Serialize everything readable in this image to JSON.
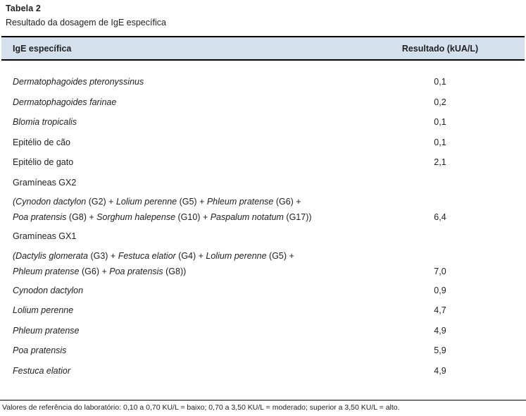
{
  "title": "Tabela 2",
  "subtitle": "Resultado da dosagem de IgE específica",
  "table": {
    "header": {
      "allergen": "IgE específica",
      "result": "Resultado (kUA/L)"
    },
    "rows": [
      {
        "lines": [
          [
            {
              "text": "Dermatophagoides pteronyssinus",
              "italic": true
            }
          ]
        ],
        "value": "0,1"
      },
      {
        "lines": [
          [
            {
              "text": "Dermatophagoides farinae",
              "italic": true
            }
          ]
        ],
        "value": "0,2"
      },
      {
        "lines": [
          [
            {
              "text": "Blomia tropicalis",
              "italic": true
            }
          ]
        ],
        "value": "0,1"
      },
      {
        "lines": [
          [
            {
              "text": "Epitélio de cão",
              "italic": false
            }
          ]
        ],
        "value": "0,1"
      },
      {
        "lines": [
          [
            {
              "text": "Epitélio de gato",
              "italic": false
            }
          ]
        ],
        "value": "2,1"
      },
      {
        "lines": [
          [
            {
              "text": "Gramíneas GX2",
              "italic": false
            }
          ]
        ],
        "value": ""
      },
      {
        "lines": [
          [
            {
              "text": "(Cynodon dactylon",
              "italic": true
            },
            {
              "text": " (G2) + ",
              "italic": false
            },
            {
              "text": "Lolium perenne",
              "italic": true
            },
            {
              "text": " (G5) + ",
              "italic": false
            },
            {
              "text": "Phleum pratense",
              "italic": true
            },
            {
              "text": " (G6) +",
              "italic": false
            }
          ],
          [
            {
              "text": "Poa pratensis",
              "italic": true
            },
            {
              "text": " (G8) + ",
              "italic": false
            },
            {
              "text": "Sorghum halepense",
              "italic": true
            },
            {
              "text": " (G10) + ",
              "italic": false
            },
            {
              "text": "Paspalum notatum",
              "italic": true
            },
            {
              "text": " (G17))",
              "italic": false
            }
          ]
        ],
        "value": "6,4"
      },
      {
        "lines": [
          [
            {
              "text": "Gramíneas GX1",
              "italic": false
            }
          ]
        ],
        "value": ""
      },
      {
        "lines": [
          [
            {
              "text": "(Dactylis glomerata",
              "italic": true
            },
            {
              "text": " (G3) + ",
              "italic": false
            },
            {
              "text": "Festuca elatior",
              "italic": true
            },
            {
              "text": " (G4) + ",
              "italic": false
            },
            {
              "text": "Lolium perenne",
              "italic": true
            },
            {
              "text": " (G5) +",
              "italic": false
            }
          ],
          [
            {
              "text": "Phleum pratense",
              "italic": true
            },
            {
              "text": " (G6) + ",
              "italic": false
            },
            {
              "text": "Poa pratensis",
              "italic": true
            },
            {
              "text": " (G8))",
              "italic": false
            }
          ]
        ],
        "value": "7,0"
      },
      {
        "lines": [
          [
            {
              "text": "Cynodon dactylon",
              "italic": true
            }
          ]
        ],
        "value": "0,9"
      },
      {
        "lines": [
          [
            {
              "text": "Lolium perenne",
              "italic": true
            }
          ]
        ],
        "value": "4,7"
      },
      {
        "lines": [
          [
            {
              "text": "Phleum pratense",
              "italic": true
            }
          ]
        ],
        "value": "4,9"
      },
      {
        "lines": [
          [
            {
              "text": "Poa pratensis",
              "italic": true
            }
          ]
        ],
        "value": "5,9"
      },
      {
        "lines": [
          [
            {
              "text": "Festuca elatior",
              "italic": true
            }
          ]
        ],
        "value": "4,9"
      }
    ]
  },
  "footnote": "Valores de referência do laboratório: 0,10 a 0,70 KU/L = baixo; 0,70 a 3,50 KU/L = moderado; superior a 3,50 KU/L = alto.",
  "colors": {
    "header_band": "#d4e1ed",
    "rule": "#000000",
    "text": "#212121"
  }
}
